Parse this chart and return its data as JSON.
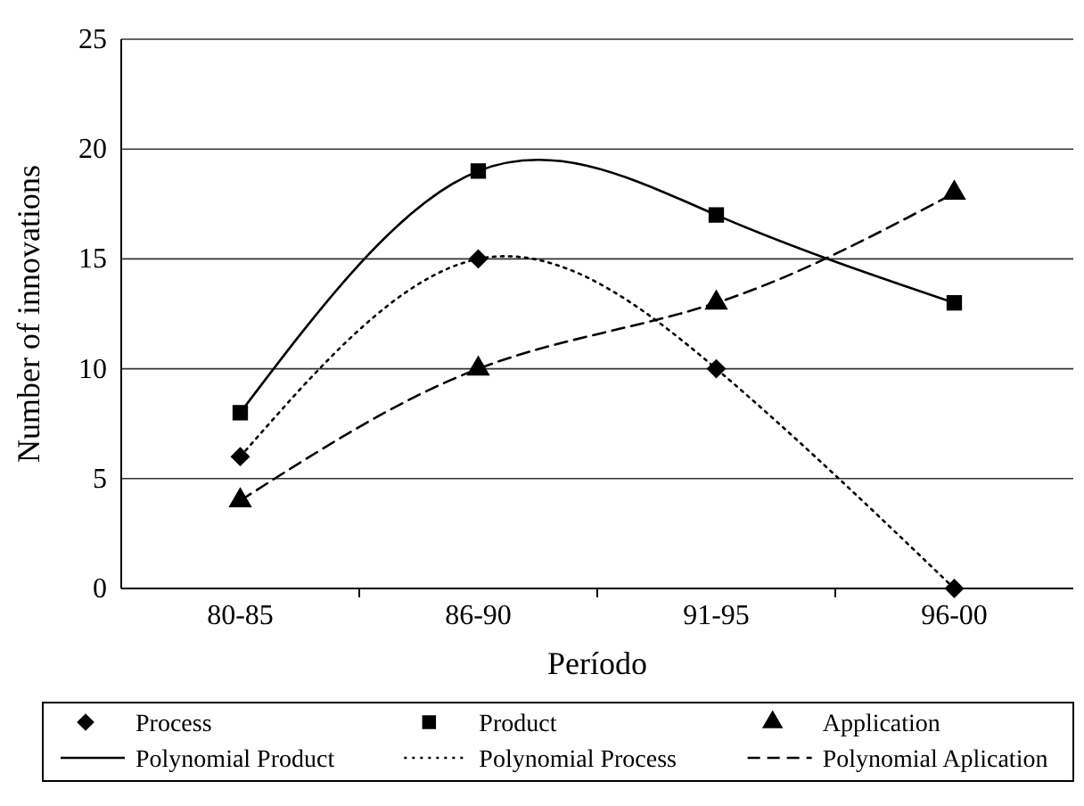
{
  "chart_data": {
    "type": "scatter",
    "xlabel": "Período",
    "ylabel": "Number of innovations",
    "categories": [
      "80-85",
      "86-90",
      "91-95",
      "96-00"
    ],
    "ylim": [
      0,
      25
    ],
    "yticks": [
      0,
      5,
      10,
      15,
      20,
      25
    ],
    "grid": "y",
    "legend": "bottom",
    "series": [
      {
        "name": "Process",
        "marker": "diamond",
        "color": "#000000",
        "values": [
          6,
          15,
          10,
          0
        ]
      },
      {
        "name": "Product",
        "marker": "square",
        "color": "#000000",
        "values": [
          8,
          19,
          17,
          13
        ]
      },
      {
        "name": "Application",
        "marker": "triangle",
        "color": "#000000",
        "values": [
          4,
          10,
          13,
          18
        ]
      },
      {
        "name": "Polynomial Product",
        "type": "line",
        "line_style": "solid",
        "marker": "none",
        "color": "#000000",
        "x": [
          "80-85",
          "86-90",
          "91-95",
          "96-00"
        ],
        "values": [
          8,
          19,
          17,
          13
        ]
      },
      {
        "name": "Polynomial Process",
        "type": "line",
        "line_style": "dotted",
        "marker": "none",
        "color": "#000000",
        "x": [
          "80-85",
          "86-90",
          "91-95",
          "96-00"
        ],
        "values": [
          6,
          15,
          10,
          0
        ]
      },
      {
        "name": "Polynomial Aplication",
        "type": "line",
        "line_style": "dashed",
        "marker": "none",
        "color": "#000000",
        "x": [
          "80-85",
          "86-90",
          "91-95",
          "96-00"
        ],
        "values": [
          4,
          10,
          13,
          18
        ]
      }
    ]
  }
}
